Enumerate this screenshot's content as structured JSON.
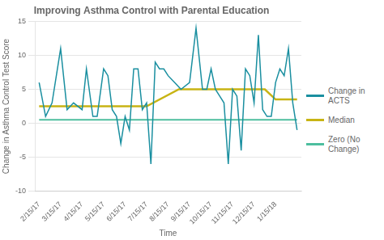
{
  "chart_data": {
    "type": "line",
    "title": "Improving Asthma Control with Parental Education",
    "x_label": "Time",
    "y_label": "Change in Asthma Control Test Score",
    "series": [
      {
        "name": "Change in\nACTS",
        "color": "#1a8fa0",
        "x": [
          0,
          0.3,
          0.6,
          1.0,
          1.3,
          1.6,
          2.0,
          2.2,
          2.5,
          2.7,
          3.0,
          3.2,
          3.4,
          3.6,
          3.8,
          4.0,
          4.2,
          4.4,
          4.6,
          4.8,
          5.0,
          5.2,
          5.4,
          5.6,
          5.8,
          6.0,
          6.3,
          6.6,
          7.0,
          7.3,
          7.6,
          7.8,
          8.0,
          8.2,
          8.4,
          8.6,
          8.8,
          9.0,
          9.2,
          9.4,
          9.6,
          9.8,
          10.0,
          10.2,
          10.4,
          10.6,
          10.8,
          11.0,
          11.2,
          11.4,
          11.6,
          11.8,
          12.0
        ],
        "values": [
          6,
          1,
          3,
          11,
          2,
          3,
          2,
          8,
          1,
          1,
          8,
          7,
          2,
          1,
          -3,
          1,
          -1,
          8,
          8,
          2,
          3,
          -6,
          9,
          8,
          8,
          7,
          6,
          5,
          6,
          14,
          5,
          5,
          8,
          5,
          4,
          3,
          -6,
          5,
          4,
          -4,
          8,
          7,
          3,
          13,
          2,
          1,
          1,
          6,
          8,
          7,
          11,
          3,
          -1
        ]
      },
      {
        "name": "Median",
        "color": "#c8b414",
        "x": [
          0,
          5.0,
          6.5,
          10.5,
          11,
          12
        ],
        "values": [
          2.5,
          2.5,
          5.0,
          5.0,
          3.5,
          3.5
        ]
      },
      {
        "name": "Zero (No\nChange)",
        "color": "#4dbe9e",
        "x": [
          0,
          12
        ],
        "values": [
          0.5,
          0.5
        ]
      }
    ],
    "xlim": [
      -0.2,
      12.2
    ],
    "xticks": [
      {
        "value": 0,
        "label": "2/15/17"
      },
      {
        "value": 1,
        "label": "3/15/17"
      },
      {
        "value": 2,
        "label": "4/15/17"
      },
      {
        "value": 3,
        "label": "5/15/17"
      },
      {
        "value": 4,
        "label": "6/15/17"
      },
      {
        "value": 5,
        "label": "7/15/17"
      },
      {
        "value": 6,
        "label": "8/15/17"
      },
      {
        "value": 7,
        "label": "9/15/17"
      },
      {
        "value": 8,
        "label": "10/15/17"
      },
      {
        "value": 9,
        "label": "11/15/17"
      },
      {
        "value": 10,
        "label": "12/15/17"
      },
      {
        "value": 11,
        "label": "1/15/18"
      }
    ],
    "ylim": [
      -10,
      15
    ],
    "yticks": [
      -10,
      -5,
      0,
      5,
      10,
      15
    ],
    "grid": true,
    "legend": "right"
  }
}
